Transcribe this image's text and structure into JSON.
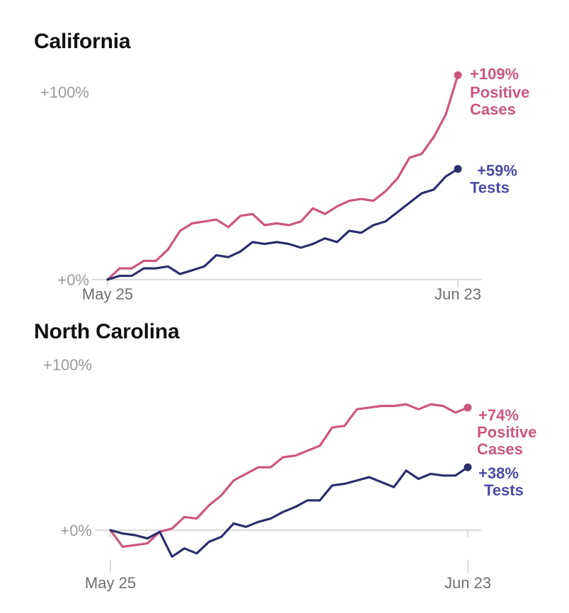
{
  "chart_data": [
    {
      "type": "line",
      "title": "California",
      "x_start": "May 25",
      "x_end": "Jun 23",
      "ylim": [
        0,
        100
      ],
      "y_ticks": [
        "+100%",
        "+0%"
      ],
      "colors": {
        "cases": "#cc5580",
        "tests": "#2b2f6b",
        "tests_label": "#4b4aa6"
      },
      "series": [
        {
          "key": "cases",
          "end_label": [
            "+109%",
            "Positive",
            "Cases"
          ],
          "values": [
            0,
            6,
            6,
            10,
            10,
            16,
            26,
            30,
            31,
            32,
            28,
            34,
            35,
            29,
            30,
            29,
            31,
            38,
            35,
            39,
            42,
            43,
            42,
            47,
            54,
            65,
            67,
            76,
            88,
            109
          ]
        },
        {
          "key": "tests",
          "end_label": [
            "+59%",
            "Tests"
          ],
          "values": [
            0,
            2,
            2,
            6,
            6,
            7,
            3,
            5,
            7,
            13,
            12,
            15,
            20,
            19,
            20,
            19,
            17,
            19,
            22,
            20,
            26,
            25,
            29,
            31,
            36,
            41,
            46,
            48,
            55,
            59
          ]
        }
      ]
    },
    {
      "type": "line",
      "title": "North Carolina",
      "x_start": "May 25",
      "x_end": "Jun 23",
      "ylim": [
        -15,
        100
      ],
      "y_ticks": [
        "+100%",
        "+0%"
      ],
      "colors": {
        "cases": "#cc5580",
        "tests": "#2b2f6b",
        "tests_label": "#4b4aa6"
      },
      "series": [
        {
          "key": "cases",
          "end_label": [
            "+74%",
            "Positive",
            "Cases"
          ],
          "values": [
            0,
            -10,
            -9,
            -8,
            -1,
            1,
            8,
            7,
            15,
            21,
            30,
            34,
            38,
            38,
            44,
            45,
            48,
            51,
            62,
            63,
            73,
            74,
            75,
            75,
            76,
            73,
            76,
            75,
            71,
            74
          ]
        },
        {
          "key": "tests",
          "end_label": [
            "+38%",
            "Tests"
          ],
          "values": [
            0,
            -2,
            -3,
            -5,
            -1,
            -16,
            -11,
            -14,
            -7,
            -4,
            4,
            2,
            5,
            7,
            11,
            14,
            18,
            18,
            27,
            28,
            30,
            32,
            29,
            26,
            36,
            31,
            34,
            33,
            33,
            38
          ]
        }
      ]
    }
  ]
}
